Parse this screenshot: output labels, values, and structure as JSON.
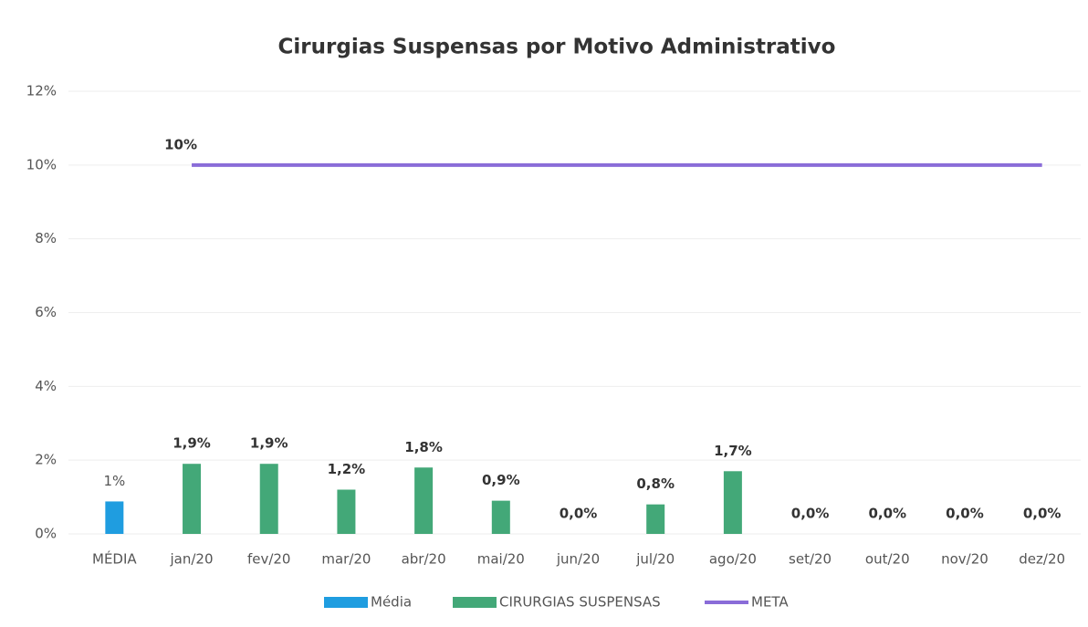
{
  "chart_data": {
    "type": "bar",
    "title": "Cirurgias Suspensas por Motivo Administrativo",
    "categories": [
      "MÉDIA",
      "jan/20",
      "fev/20",
      "mar/20",
      "abr/20",
      "mai/20",
      "jun/20",
      "jul/20",
      "ago/20",
      "set/20",
      "out/20",
      "nov/20",
      "dez/20"
    ],
    "series": [
      {
        "name": "Média",
        "color": "#1f9de0",
        "kind": "bar",
        "values": [
          0.88,
          null,
          null,
          null,
          null,
          null,
          null,
          null,
          null,
          null,
          null,
          null,
          null
        ],
        "value_labels": [
          "1%",
          null,
          null,
          null,
          null,
          null,
          null,
          null,
          null,
          null,
          null,
          null,
          null
        ]
      },
      {
        "name": "CIRURGIAS SUSPENSAS",
        "color": "#43a878",
        "kind": "bar",
        "values": [
          null,
          1.9,
          1.9,
          1.2,
          1.8,
          0.9,
          0,
          0.8,
          1.7,
          0,
          0,
          0,
          0
        ],
        "value_labels": [
          null,
          "1,9%",
          "1,9%",
          "1,2%",
          "1,8%",
          "0,9%",
          "0,0%",
          "0,8%",
          "1,7%",
          "0,0%",
          "0,0%",
          "0,0%",
          "0,0%"
        ]
      },
      {
        "name": "META",
        "color": "#8a6cd8",
        "kind": "line",
        "values": [
          null,
          10,
          10,
          10,
          10,
          10,
          10,
          10,
          10,
          10,
          10,
          10,
          10
        ],
        "value_labels": [
          null,
          "10%",
          null,
          null,
          null,
          null,
          null,
          null,
          null,
          null,
          null,
          null,
          null
        ]
      }
    ],
    "ylim": [
      0,
      12
    ],
    "yticks": [
      {
        "value": 0,
        "label": "0%"
      },
      {
        "value": 2,
        "label": "2%"
      },
      {
        "value": 4,
        "label": "4%"
      },
      {
        "value": 6,
        "label": "6%"
      },
      {
        "value": 8,
        "label": "8%"
      },
      {
        "value": 10,
        "label": "10%"
      },
      {
        "value": 12,
        "label": "12%"
      }
    ],
    "grid": true,
    "legend": "bottom"
  }
}
